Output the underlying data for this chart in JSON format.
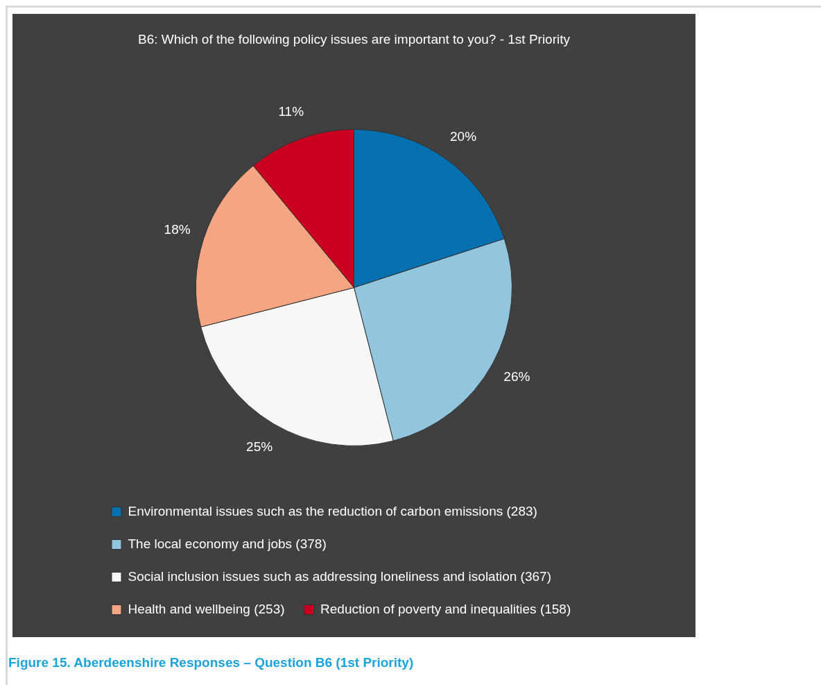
{
  "chart_data": {
    "type": "pie",
    "title": "B6: Which of the following policy issues are important to you? - 1st Priority",
    "categories": [
      "Environmental issues such as the reduction of carbon emissions (283)",
      "The local economy and jobs (378)",
      "Social inclusion issues such as addressing loneliness and isolation (367)",
      "Health and wellbeing (253)",
      "Reduction of poverty and inequalities (158)"
    ],
    "values": [
      20,
      26,
      25,
      18,
      11
    ],
    "colors": [
      "#0570b0",
      "#92c5de",
      "#f7f7f7",
      "#f4a582",
      "#ca0020"
    ],
    "value_labels": [
      "20%",
      "26%",
      "25%",
      "18%",
      "11%"
    ],
    "legend": "bottom",
    "annotations": [
      "Figure 15. Aberdeenshire Responses – Question B6 (1st Priority)"
    ]
  }
}
